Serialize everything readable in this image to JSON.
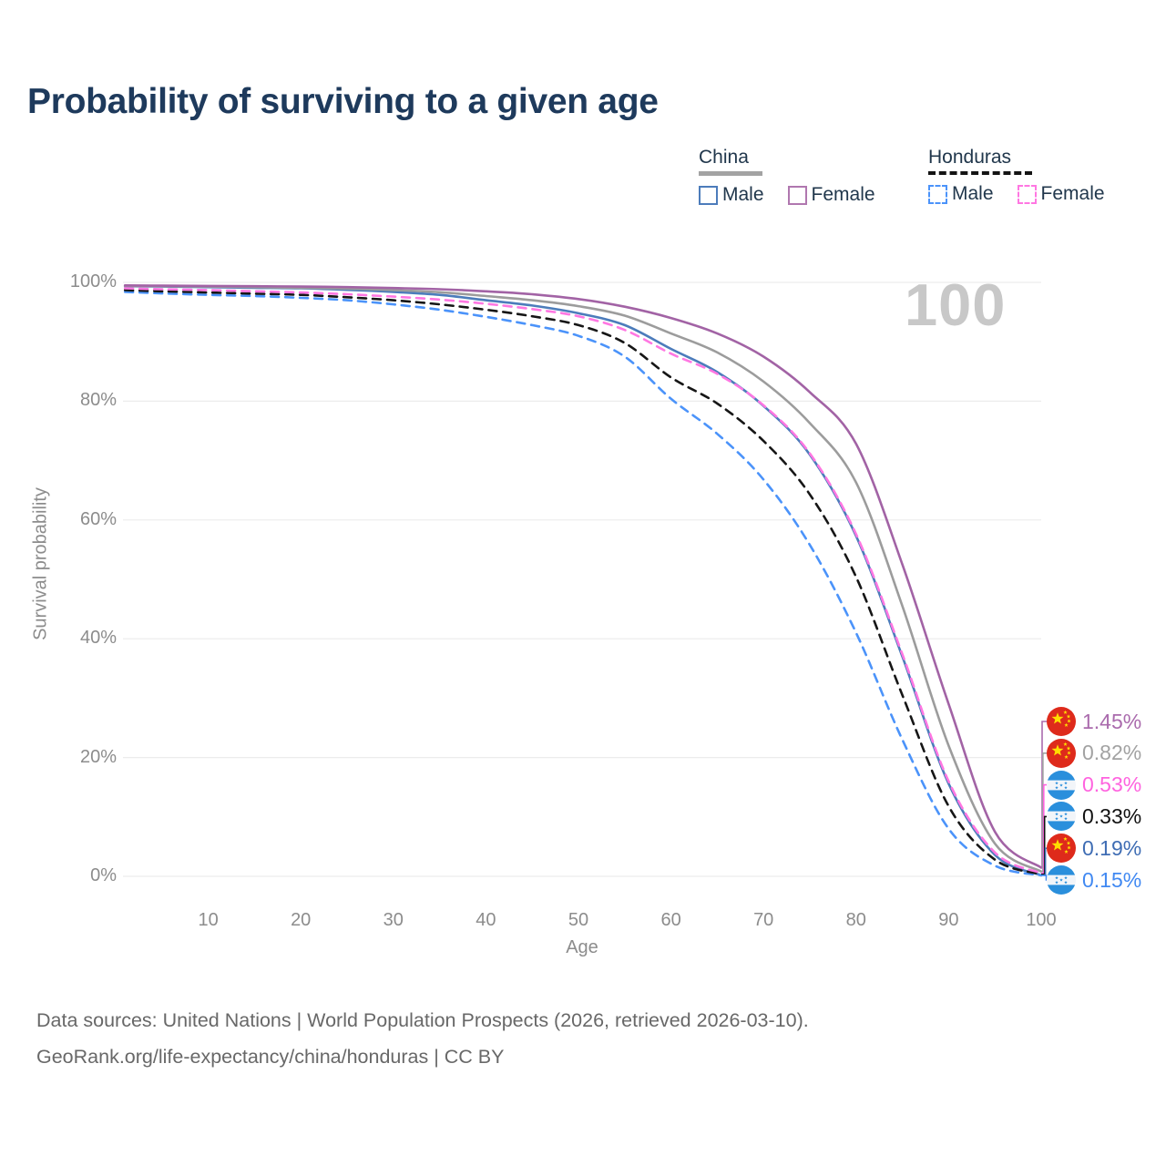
{
  "title": "Probability of surviving to a given age",
  "watermark": "100",
  "legend": {
    "groups": [
      {
        "label": "China",
        "underline_color": "#a3a3a3",
        "underline_style": "solid",
        "items": [
          {
            "label": "Male",
            "color": "#4c7cbb",
            "line_style": "solid"
          },
          {
            "label": "Female",
            "color": "#b077af",
            "line_style": "solid"
          }
        ]
      },
      {
        "label": "Honduras",
        "underline_color": "#141414",
        "underline_style": "dashed",
        "items": [
          {
            "label": "Male",
            "color": "#4b93fa",
            "line_style": "dashed"
          },
          {
            "label": "Female",
            "color": "#ff77e2",
            "line_style": "dashed"
          }
        ]
      }
    ]
  },
  "chart_data": {
    "type": "line",
    "title": "Probability of surviving to a given age",
    "xlabel": "Age",
    "ylabel": "Survival probability",
    "xlim": [
      1,
      100
    ],
    "ylim": [
      0,
      100
    ],
    "grid": "horizontal",
    "x_ticks": [
      10,
      20,
      30,
      40,
      50,
      60,
      70,
      80,
      90,
      100
    ],
    "y_ticks": [
      {
        "value": 0,
        "label": "0%"
      },
      {
        "value": 20,
        "label": "20%"
      },
      {
        "value": 40,
        "label": "40%"
      },
      {
        "value": 60,
        "label": "60%"
      },
      {
        "value": 80,
        "label": "80%"
      },
      {
        "value": 100,
        "label": "100%"
      }
    ],
    "ages": [
      1,
      5,
      10,
      15,
      20,
      25,
      30,
      35,
      40,
      45,
      50,
      55,
      60,
      65,
      70,
      75,
      80,
      85,
      90,
      95,
      100
    ],
    "series": [
      {
        "name": "China Male",
        "country": "China",
        "group": "Male",
        "color": "#4c7cbb",
        "line_style": "solid",
        "values": [
          99.35,
          99.3,
          99.2,
          99.1,
          99.0,
          98.75,
          98.4,
          97.9,
          97.0,
          96.1,
          94.8,
          92.8,
          88.8,
          84.9,
          79.2,
          71.0,
          57.3,
          37.0,
          15.6,
          3.6,
          0.19
        ]
      },
      {
        "name": "China",
        "country": "China",
        "group": "Both sexes",
        "color": "#9c9c9c",
        "line_style": "solid",
        "values": [
          99.4,
          99.35,
          99.3,
          99.2,
          99.1,
          98.95,
          98.7,
          98.35,
          97.7,
          97.0,
          96.0,
          94.4,
          91.4,
          88.2,
          83.3,
          76.3,
          66.3,
          45.5,
          22.0,
          5.5,
          0.82
        ]
      },
      {
        "name": "China Female",
        "country": "China",
        "group": "Female",
        "color": "#a263a5",
        "line_style": "solid",
        "values": [
          99.5,
          99.45,
          99.4,
          99.35,
          99.3,
          99.2,
          99.05,
          98.85,
          98.5,
          98.0,
          97.2,
          95.9,
          94.0,
          91.4,
          87.5,
          81.5,
          72.8,
          52.5,
          29.0,
          7.5,
          1.45
        ]
      },
      {
        "name": "Honduras Male",
        "country": "Honduras",
        "group": "Male",
        "color": "#4b93fa",
        "line_style": "dashed",
        "values": [
          98.4,
          98.15,
          97.9,
          97.7,
          97.4,
          97.0,
          96.3,
          95.4,
          94.2,
          92.8,
          91.0,
          87.5,
          80.4,
          74.5,
          66.8,
          55.8,
          41.0,
          23.0,
          8.0,
          1.8,
          0.15
        ]
      },
      {
        "name": "Honduras",
        "country": "Honduras",
        "group": "Both sexes",
        "color": "#161616",
        "line_style": "dashed",
        "values": [
          98.7,
          98.5,
          98.3,
          98.1,
          97.9,
          97.5,
          97.0,
          96.3,
          95.4,
          94.3,
          92.8,
          89.8,
          84.0,
          79.6,
          73.3,
          64.3,
          50.4,
          30.5,
          11.8,
          2.8,
          0.33
        ]
      },
      {
        "name": "Honduras Female",
        "country": "Honduras",
        "group": "Female",
        "color": "#ff77e2",
        "line_style": "dashed",
        "values": [
          99.0,
          98.85,
          98.7,
          98.5,
          98.3,
          98.0,
          97.6,
          97.1,
          96.4,
          95.5,
          94.3,
          92.0,
          88.0,
          84.6,
          79.3,
          71.2,
          57.6,
          37.4,
          16.0,
          4.0,
          0.53
        ]
      }
    ],
    "end_labels": [
      {
        "text": "1.45%",
        "value": 1.45,
        "color": "#aa6bad",
        "flag": "china",
        "series": "China Female"
      },
      {
        "text": "0.82%",
        "value": 0.82,
        "color": "#a2a2a2",
        "flag": "china",
        "series": "China"
      },
      {
        "text": "0.53%",
        "value": 0.53,
        "color": "#ff63df",
        "flag": "honduras",
        "series": "Honduras Female"
      },
      {
        "text": "0.33%",
        "value": 0.33,
        "color": "#111111",
        "flag": "honduras",
        "series": "Honduras"
      },
      {
        "text": "0.19%",
        "value": 0.19,
        "color": "#3f6db4",
        "flag": "china",
        "series": "China Male"
      },
      {
        "text": "0.15%",
        "value": 0.15,
        "color": "#4189f2",
        "flag": "honduras",
        "series": "Honduras Male"
      }
    ],
    "flag_colors": {
      "china_red": "#de2a1b",
      "china_star": "#ffde00",
      "honduras_blue": "#2a8fdc",
      "honduras_white": "#f2f5f9"
    }
  },
  "footer": {
    "line1": "Data sources: United Nations | World Population Prospects (2026, retrieved 2026-03-10).",
    "line2": "GeoRank.org/life-expectancy/china/honduras | CC BY"
  }
}
